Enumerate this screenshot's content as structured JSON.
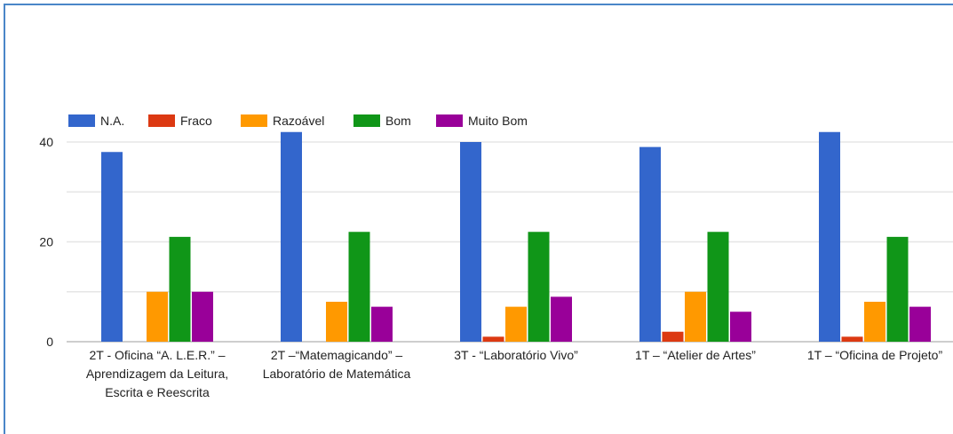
{
  "chart_data": {
    "type": "bar",
    "categories": [
      [
        "2T - Oficina “A. L.E.R.” –",
        "Aprendizagem da Leitura,",
        "Escrita e Reescrita"
      ],
      [
        "2T –“Matemagicando” –",
        "Laboratório de Matemática"
      ],
      [
        "3T - “Laboratório Vivo”"
      ],
      [
        "1T – “Atelier de Artes”"
      ],
      [
        "1T – “Oficina de Projeto”"
      ]
    ],
    "series": [
      {
        "name": "N.A.",
        "color": "#3366cc",
        "values": [
          38,
          42,
          40,
          39,
          42
        ]
      },
      {
        "name": "Fraco",
        "color": "#dc3912",
        "values": [
          0,
          0,
          1,
          2,
          1
        ]
      },
      {
        "name": "Razoável",
        "color": "#ff9900",
        "values": [
          10,
          8,
          7,
          10,
          8
        ]
      },
      {
        "name": "Bom",
        "color": "#109618",
        "values": [
          21,
          22,
          22,
          22,
          21
        ]
      },
      {
        "name": "Muito Bom",
        "color": "#990099",
        "values": [
          10,
          7,
          9,
          6,
          7
        ]
      }
    ],
    "ylim": [
      0,
      42
    ],
    "yticks": [
      0,
      20,
      40
    ],
    "grid": true,
    "legend": "top-left"
  }
}
